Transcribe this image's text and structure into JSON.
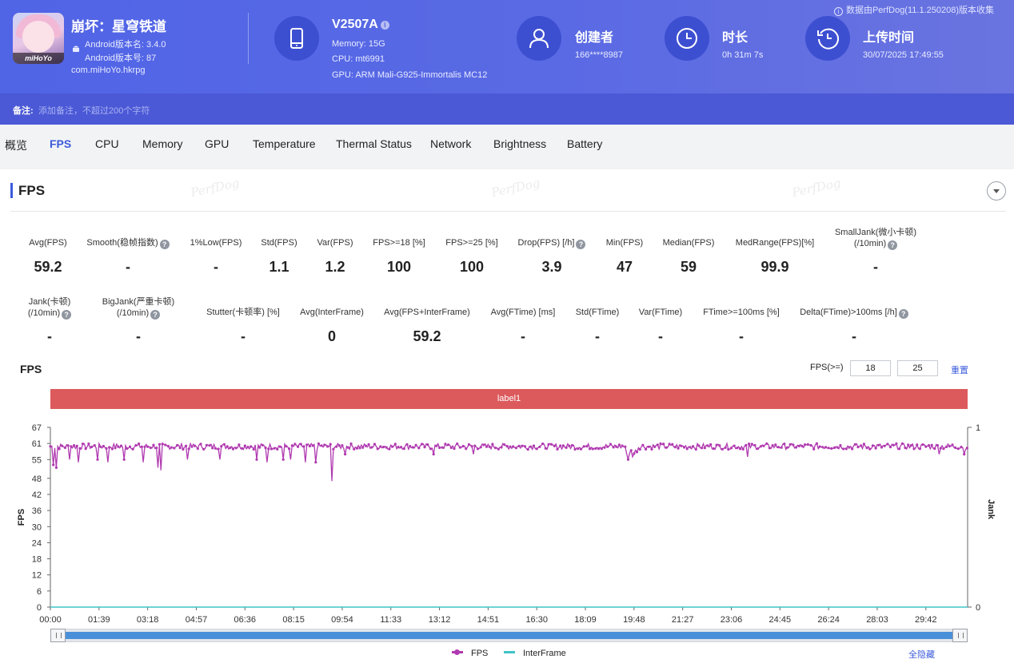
{
  "header": {
    "notice": "数据由PerfDog(11.1.250208)版本收集",
    "app": {
      "icon_text": "miHoYo",
      "title": "崩坏：星穹铁道",
      "version_name": "Android版本名: 3.4.0",
      "version_code": "Android版本号: 87",
      "package": "com.miHoYo.hkrpg"
    },
    "device": {
      "model": "V2507A",
      "memory": "Memory: 15G",
      "cpu": "CPU: mt6991",
      "gpu": "GPU: ARM Mali-G925-Immortalis MC12"
    },
    "creator": {
      "label": "创建者",
      "value": "166****8987"
    },
    "duration": {
      "label": "时长",
      "value": "0h 31m 7s"
    },
    "upload": {
      "label": "上传时间",
      "value": "30/07/2025 17:49:55"
    }
  },
  "remark": {
    "label": "备注:",
    "placeholder": "添加备注，不超过200个字符"
  },
  "tabs": [
    "概览",
    "FPS",
    "CPU",
    "Memory",
    "GPU",
    "Temperature",
    "Thermal Status",
    "Network",
    "Brightness",
    "Battery"
  ],
  "active_tab": "FPS",
  "section": {
    "title": "FPS",
    "watermark": "PerfDog"
  },
  "metrics_row1": [
    {
      "name": "Avg(FPS)",
      "value": "59.2",
      "help": false
    },
    {
      "name": "Smooth(稳帧指数)",
      "value": "-",
      "help": true
    },
    {
      "name": "1%Low(FPS)",
      "value": "-",
      "help": false
    },
    {
      "name": "Std(FPS)",
      "value": "1.1",
      "help": false
    },
    {
      "name": "Var(FPS)",
      "value": "1.2",
      "help": false
    },
    {
      "name": "FPS>=18 [%]",
      "value": "100",
      "help": false
    },
    {
      "name": "FPS>=25 [%]",
      "value": "100",
      "help": false
    },
    {
      "name": "Drop(FPS) [/h]",
      "value": "3.9",
      "help": true
    },
    {
      "name": "Min(FPS)",
      "value": "47",
      "help": false
    },
    {
      "name": "Median(FPS)",
      "value": "59",
      "help": false
    },
    {
      "name": "MedRange(FPS)[%]",
      "value": "99.9",
      "help": false
    },
    {
      "name": "SmallJank(微小卡顿)",
      "name2": "(/10min)",
      "value": "-",
      "help": true
    }
  ],
  "metrics_row2": [
    {
      "name": "Jank(卡顿)",
      "name2": "(/10min)",
      "value": "-",
      "help": true
    },
    {
      "name": "BigJank(严重卡顿)",
      "name2": "(/10min)",
      "value": "-",
      "help": true
    },
    {
      "name": "Stutter(卡顿率) [%]",
      "value": "-",
      "help": false
    },
    {
      "name": "Avg(InterFrame)",
      "value": "0",
      "help": false
    },
    {
      "name": "Avg(FPS+InterFrame)",
      "value": "59.2",
      "help": false
    },
    {
      "name": "Avg(FTime) [ms]",
      "value": "-",
      "help": false
    },
    {
      "name": "Std(FTime)",
      "value": "-",
      "help": false
    },
    {
      "name": "Var(FTime)",
      "value": "-",
      "help": false
    },
    {
      "name": "FTime>=100ms [%]",
      "value": "-",
      "help": false
    },
    {
      "name": "Delta(FTime)>100ms [/h]",
      "value": "-",
      "help": true
    }
  ],
  "fps_controls": {
    "label": "FPS(>=)",
    "threshold1": "18",
    "threshold2": "25",
    "reset": "重置"
  },
  "label_band": "label1",
  "legend": {
    "fps": "FPS",
    "interframe": "InterFrame",
    "hide_all": "全隐藏"
  },
  "colors": {
    "fps": "#b03ab0",
    "interframe": "#3fc3c8",
    "accent": "#3b5bdb",
    "label_band": "#dc5a5c"
  },
  "chart_data": {
    "type": "line",
    "title": "FPS",
    "ylabel": "FPS",
    "y2label": "Jank",
    "yticks": [
      0,
      6,
      12,
      18,
      24,
      30,
      36,
      42,
      48,
      55,
      61,
      67
    ],
    "y2ticks": [
      0,
      1
    ],
    "ylim": [
      0,
      67
    ],
    "xticks": [
      "00:00",
      "01:39",
      "03:18",
      "04:57",
      "06:36",
      "08:15",
      "09:54",
      "11:33",
      "13:12",
      "14:51",
      "16:30",
      "18:09",
      "19:48",
      "21:27",
      "23:06",
      "24:45",
      "26:24",
      "28:03",
      "29:42"
    ],
    "x_duration_seconds": 1867,
    "series": [
      {
        "name": "FPS",
        "baseline": 59.2,
        "dips": [
          {
            "t": 6,
            "v": 53
          },
          {
            "t": 12,
            "v": 52
          },
          {
            "t": 40,
            "v": 55
          },
          {
            "t": 58,
            "v": 54
          },
          {
            "t": 95,
            "v": 55
          },
          {
            "t": 118,
            "v": 54
          },
          {
            "t": 150,
            "v": 55
          },
          {
            "t": 188,
            "v": 54
          },
          {
            "t": 218,
            "v": 52
          },
          {
            "t": 225,
            "v": 51
          },
          {
            "t": 280,
            "v": 55
          },
          {
            "t": 345,
            "v": 55
          },
          {
            "t": 420,
            "v": 55
          },
          {
            "t": 440,
            "v": 54
          },
          {
            "t": 475,
            "v": 55
          },
          {
            "t": 490,
            "v": 55
          },
          {
            "t": 520,
            "v": 54
          },
          {
            "t": 540,
            "v": 54
          },
          {
            "t": 572,
            "v": 47
          },
          {
            "t": 600,
            "v": 57
          },
          {
            "t": 780,
            "v": 57
          },
          {
            "t": 860,
            "v": 57
          },
          {
            "t": 1175,
            "v": 55
          },
          {
            "t": 1185,
            "v": 56
          },
          {
            "t": 1420,
            "v": 56
          },
          {
            "t": 1810,
            "v": 57
          },
          {
            "t": 1860,
            "v": 57
          }
        ]
      },
      {
        "name": "InterFrame",
        "values": [
          0
        ]
      }
    ],
    "grid": false,
    "legend_position": "bottom"
  }
}
